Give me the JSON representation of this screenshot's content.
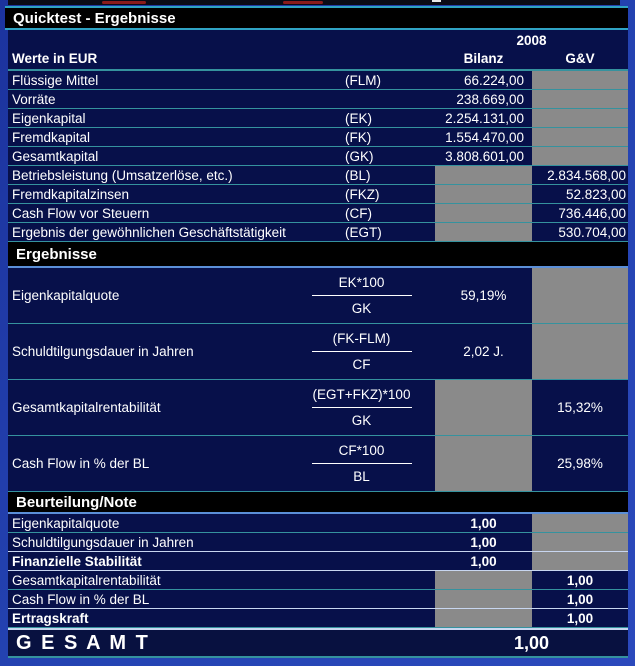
{
  "title": "Quicktest - Ergebnisse",
  "header": {
    "year": "2008",
    "unit_label": "Werte in EUR",
    "col_bilanz": "Bilanz",
    "col_guv": "G&V"
  },
  "values_section": {
    "rows": [
      {
        "label": "Flüssige Mittel",
        "code": "(FLM)",
        "bilanz": "66.224,00"
      },
      {
        "label": "Vorräte",
        "code": "",
        "bilanz": "238.669,00"
      },
      {
        "label": "Eigenkapital",
        "code": "(EK)",
        "bilanz": "2.254.131,00"
      },
      {
        "label": "Fremdkapital",
        "code": "(FK)",
        "bilanz": "1.554.470,00"
      },
      {
        "label": "Gesamtkapital",
        "code": "(GK)",
        "bilanz": "3.808.601,00"
      },
      {
        "label": "Betriebsleistung (Umsatzerlöse, etc.)",
        "code": "(BL)",
        "guv": "2.834.568,00"
      },
      {
        "label": "Fremdkapitalzinsen",
        "code": "(FKZ)",
        "guv": "52.823,00"
      },
      {
        "label": "Cash Flow vor Steuern",
        "code": "(CF)",
        "guv": "736.446,00"
      },
      {
        "label": "Ergebnis der gewöhnlichen Geschäftstätigkeit",
        "code": "(EGT)",
        "guv": "530.704,00"
      }
    ]
  },
  "results_section": {
    "heading": "Ergebnisse",
    "rows": [
      {
        "label": "Eigenkapitalquote",
        "numerator": "EK*100",
        "denominator": "GK",
        "bilanz": "59,19%"
      },
      {
        "label": "Schuldtilgungsdauer in Jahren",
        "numerator": "(FK-FLM)",
        "denominator": "CF",
        "bilanz": "2,02 J."
      },
      {
        "label": "Gesamtkapitalrentabilität",
        "numerator": "(EGT+FKZ)*100",
        "denominator": "GK",
        "guv": "15,32%"
      },
      {
        "label": "Cash Flow in % der BL",
        "numerator": "CF*100",
        "denominator": "BL",
        "guv": "25,98%"
      }
    ]
  },
  "rating_section": {
    "heading": "Beurteilung/Note",
    "rows": [
      {
        "label": "Eigenkapitalquote",
        "bilanz": "1,00"
      },
      {
        "label": "Schuldtilgungsdauer in Jahren",
        "bilanz": "1,00"
      },
      {
        "label": "Finanzielle Stabilität",
        "bilanz": "1,00"
      },
      {
        "label": "Gesamtkapitalrentabilität",
        "guv": "1,00"
      },
      {
        "label": "Cash Flow in % der BL",
        "guv": "1,00"
      },
      {
        "label": "Ertragskraft",
        "guv": "1,00"
      }
    ]
  },
  "total": {
    "label": "G E S A M T",
    "value": "1,00"
  },
  "colors": {
    "table_bg": "#07104a",
    "margin_blue": "#2443b2",
    "section_bar": "#000000",
    "separator_teal": "#35929e",
    "titlebar_line_cyan": "#2fa3c4",
    "under_bar_blue": "#5b8fd8",
    "light_line": "#c8d6f0",
    "gray_cell": "#8a8a8a",
    "text": "#ffffff"
  }
}
